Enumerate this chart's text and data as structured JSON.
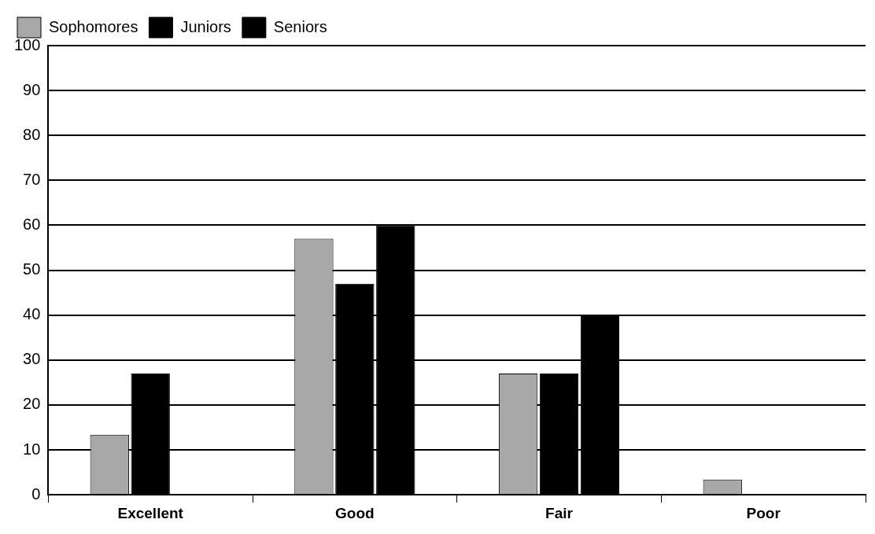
{
  "chart_data": {
    "type": "bar",
    "categories": [
      "Excellent",
      "Good",
      "Fair",
      "Poor"
    ],
    "series": [
      {
        "name": "Sophomores",
        "color": "#a8a8a8",
        "values": [
          13.4,
          57,
          27,
          3.4
        ]
      },
      {
        "name": "Juniors",
        "color": "#000000",
        "values": [
          27,
          47,
          27,
          0
        ]
      },
      {
        "name": "Seniors",
        "color": "#000000",
        "values": [
          0,
          60,
          40,
          0
        ]
      }
    ],
    "ylim": [
      0,
      100
    ],
    "yticks": [
      0,
      10,
      20,
      30,
      40,
      50,
      60,
      70,
      80,
      90,
      100
    ],
    "grid": "y",
    "legend": "top left"
  }
}
